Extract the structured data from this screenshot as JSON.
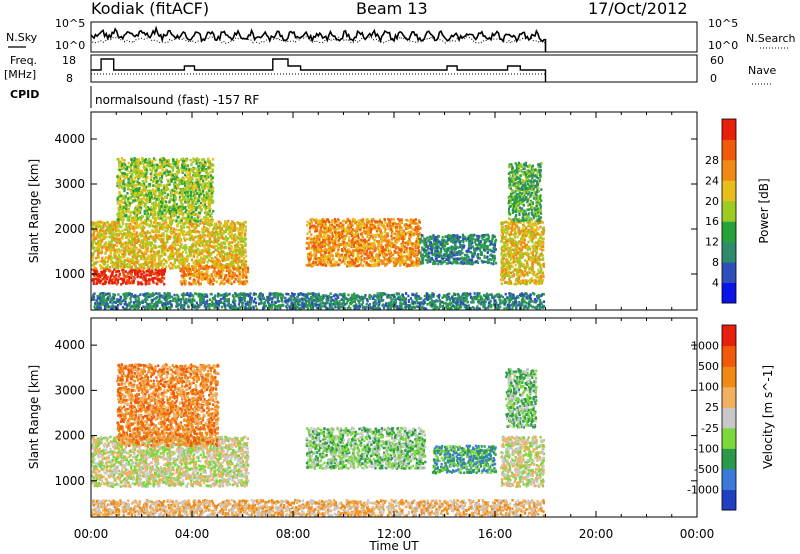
{
  "header": {
    "station": "Kodiak (fitACF)",
    "beam": "Beam 13",
    "date": "17/Oct/2012"
  },
  "params_panel": {
    "nsky_label": "N.Sky",
    "nsky_ticks": [
      "10^5",
      "10^0"
    ],
    "nsearch_label": "N.Search",
    "nsearch_ticks": [
      "10^5",
      "10^0"
    ],
    "freq_label_1": "Freq.",
    "freq_label_2": "[MHz]",
    "freq_ticks": [
      "18",
      "8"
    ],
    "nave_label": "Nave",
    "nave_ticks": [
      "60",
      "0"
    ],
    "cpid_label": "CPID",
    "cpid_value": "normalsound (fast) -157 RF"
  },
  "chart_data": [
    {
      "type": "heatmap",
      "name": "power",
      "ylabel": "Slant Range [km]",
      "xlabel": "Time UT",
      "x_ticks": [
        "00:00",
        "04:00",
        "08:00",
        "12:00",
        "16:00",
        "20:00",
        "00:00"
      ],
      "y_ticks": [
        "1000",
        "2000",
        "3000",
        "4000"
      ],
      "ylim": [
        200,
        4600
      ],
      "xlim_hours": [
        0,
        24
      ],
      "colorbar_label": "Power [dB]",
      "colorbar_ticks": [
        "4",
        "8",
        "12",
        "16",
        "20",
        "24",
        "28"
      ],
      "colors": [
        "#0a14e6",
        "#2e4fb8",
        "#2f8c6a",
        "#27a23a",
        "#9ccc22",
        "#e6bf1a",
        "#f08a14",
        "#f05a0a",
        "#e6200a"
      ],
      "scatter_regions": [
        {
          "t0": 0.0,
          "t1": 2.9,
          "r0": 800,
          "r1": 1150,
          "level": 8
        },
        {
          "t0": 0.0,
          "t1": 6.1,
          "r0": 1150,
          "r1": 2200,
          "level": 5
        },
        {
          "t0": 1.0,
          "t1": 4.8,
          "r0": 2200,
          "r1": 3600,
          "level": 4
        },
        {
          "t0": 3.5,
          "t1": 6.2,
          "r0": 800,
          "r1": 1200,
          "level": 6
        },
        {
          "t0": 8.5,
          "t1": 13.0,
          "r0": 1200,
          "r1": 2250,
          "level": 6
        },
        {
          "t0": 13.0,
          "t1": 16.0,
          "r0": 1250,
          "r1": 1900,
          "level": 2
        },
        {
          "t0": 16.2,
          "t1": 17.9,
          "r0": 800,
          "r1": 2200,
          "level": 5
        },
        {
          "t0": 16.5,
          "t1": 17.8,
          "r0": 2200,
          "r1": 3500,
          "level": 3
        },
        {
          "t0": 0.0,
          "t1": 17.9,
          "r0": 250,
          "r1": 600,
          "level": 2
        }
      ]
    },
    {
      "type": "heatmap",
      "name": "velocity",
      "ylabel": "Slant Range [km]",
      "xlabel": "Time UT",
      "x_ticks": [
        "00:00",
        "04:00",
        "08:00",
        "12:00",
        "16:00",
        "20:00",
        "00:00"
      ],
      "y_ticks": [
        "1000",
        "2000",
        "3000",
        "4000"
      ],
      "ylim": [
        200,
        4600
      ],
      "xlim_hours": [
        0,
        24
      ],
      "colorbar_label": "Velocity [m s^-1]",
      "colorbar_ticks": [
        "1000",
        "500",
        "100",
        "25",
        "-25",
        "-100",
        "-500",
        "-1000"
      ],
      "colors": [
        "#2040c0",
        "#3a7ad8",
        "#2a9a4a",
        "#7ad83a",
        "#c8c8c8",
        "#f0b060",
        "#f08a14",
        "#f05a0a",
        "#e6200a"
      ],
      "scatter_regions": [
        {
          "t0": 0.0,
          "t1": 6.2,
          "r0": 900,
          "r1": 2000,
          "level": 4
        },
        {
          "t0": 1.0,
          "t1": 5.0,
          "r0": 1800,
          "r1": 3600,
          "level": 6
        },
        {
          "t0": 8.5,
          "t1": 13.2,
          "r0": 1300,
          "r1": 2200,
          "level": 3
        },
        {
          "t0": 13.5,
          "t1": 16.0,
          "r0": 1200,
          "r1": 1800,
          "level": 2
        },
        {
          "t0": 16.2,
          "t1": 17.9,
          "r0": 900,
          "r1": 2000,
          "level": 4
        },
        {
          "t0": 16.4,
          "t1": 17.6,
          "r0": 2200,
          "r1": 3500,
          "level": 3
        },
        {
          "t0": 0.0,
          "t1": 17.9,
          "r0": 250,
          "r1": 600,
          "level": 5
        }
      ]
    }
  ],
  "x_axis_title": "Time UT"
}
